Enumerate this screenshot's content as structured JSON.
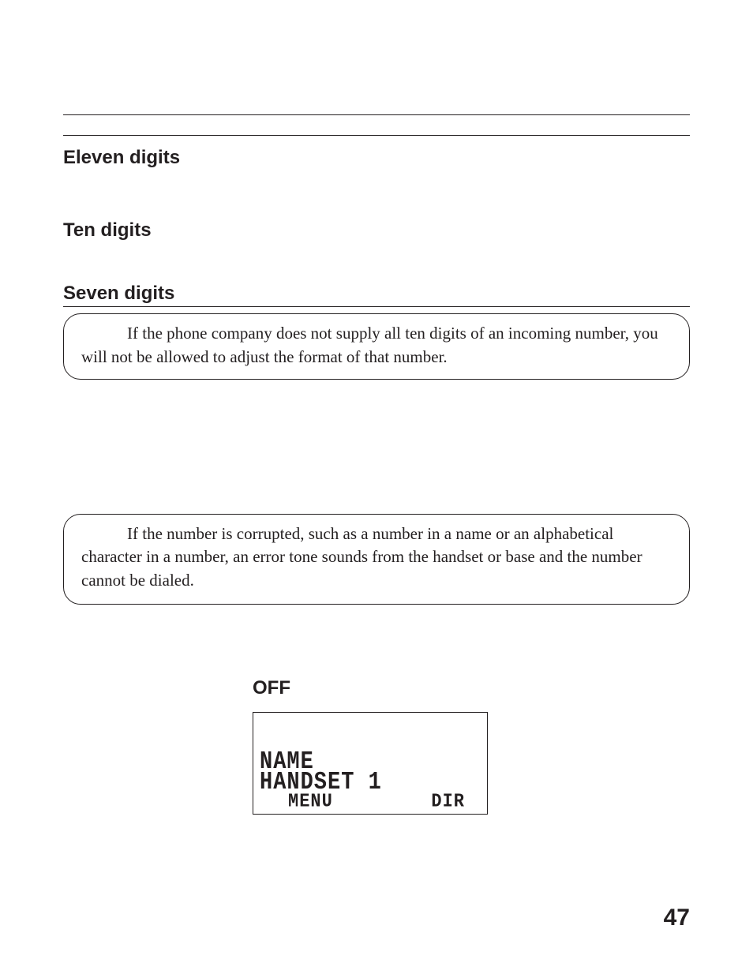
{
  "headings": {
    "eleven": "Eleven digits",
    "ten": "Ten digits",
    "seven": "Seven digits"
  },
  "notes": {
    "note1": "If the phone company does not supply all ten digits of an incoming number, you will not be allowed to adjust the format of that number.",
    "note2": "If the number is corrupted, such as a number in a name or an alphabetical character in a number, an error tone sounds from the handset or base and the number cannot be dialed."
  },
  "off_label": "OFF",
  "lcd": {
    "name": "NAME",
    "handset": "HANDSET 1",
    "menu": "MENU",
    "dir": "DIR"
  },
  "page_number": "47",
  "colors": {
    "text": "#231f20",
    "bg": "#ffffff"
  }
}
